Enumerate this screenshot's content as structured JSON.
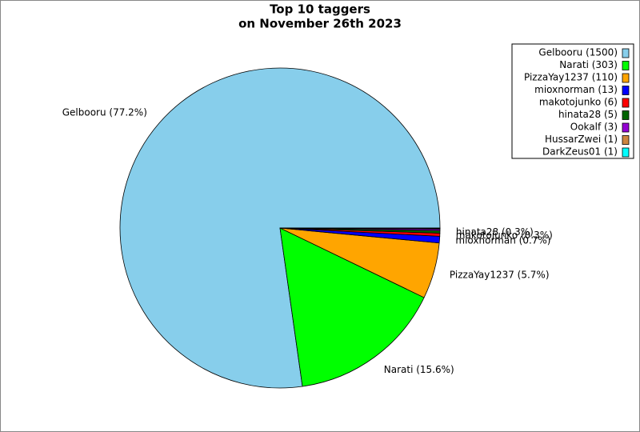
{
  "chart_data": {
    "type": "pie",
    "title": [
      "Top 10 taggers",
      "on November 26th 2023"
    ],
    "categories": [
      "Gelbooru (1500)",
      "Narati (303)",
      "PizzaYay1237 (110)",
      "mioxnorman (13)",
      "makotojunko (6)",
      "hinata28 (5)",
      "Ookalf (3)",
      "HussarZwei (1)",
      "DarkZeus01 (1)"
    ],
    "values": [
      1500,
      303,
      110,
      13,
      6,
      5,
      3,
      1,
      1
    ],
    "slice_labels": [
      "Gelbooru (77.2%)",
      "Narati (15.6%)",
      "PizzaYay1237 (5.7%)",
      "mioxnorman (0.7%)",
      "makotojunko (0.3%)",
      "hinata28 (0.3%)",
      null,
      null,
      null
    ],
    "colors": [
      "#87ceeb",
      "#00ff00",
      "#ffa500",
      "#0000ff",
      "#ff0000",
      "#006400",
      "#9400d3",
      "#cd853f",
      "#00ffff"
    ],
    "legend": "upper right"
  }
}
